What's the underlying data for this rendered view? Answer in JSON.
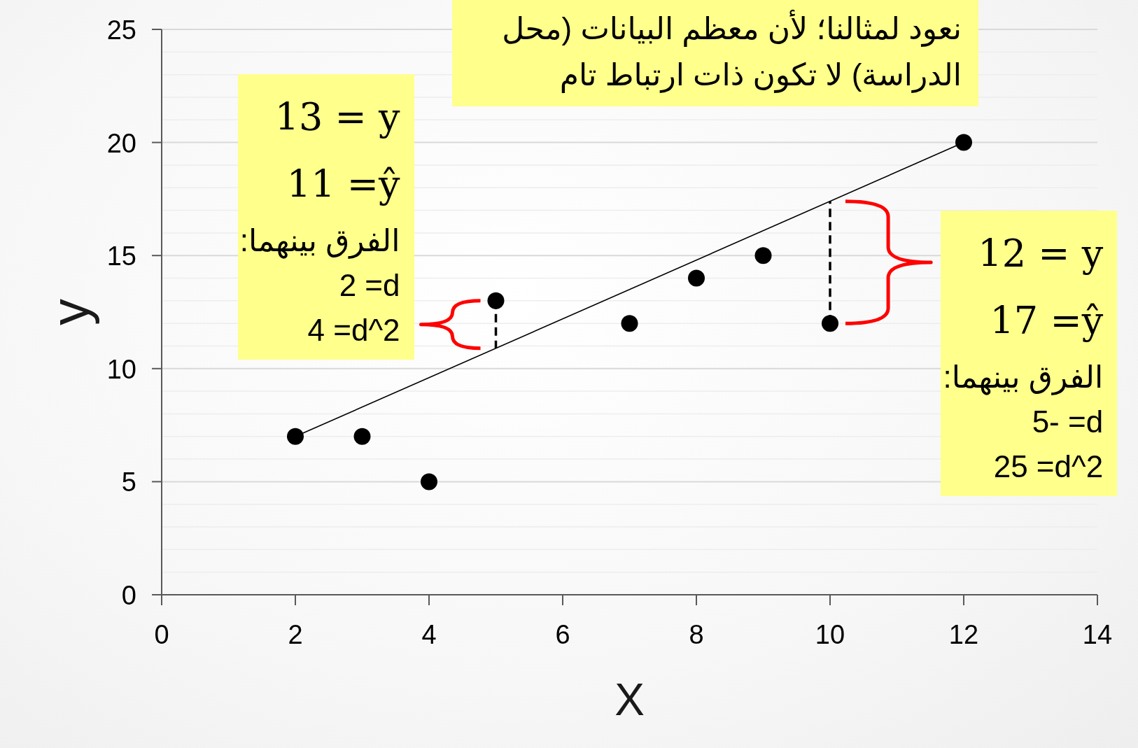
{
  "chart_data": {
    "type": "scatter",
    "xlabel": "X",
    "ylabel": "y",
    "xlim": [
      0,
      14
    ],
    "ylim": [
      0,
      25
    ],
    "xticks": [
      0,
      2,
      4,
      6,
      8,
      10,
      12,
      14
    ],
    "yticks": [
      0,
      {
        "value": 1,
        "label": null
      },
      {
        "value": 2,
        "label": null
      },
      {
        "value": 3,
        "label": null
      },
      {
        "value": 4,
        "label": null
      },
      5,
      {
        "value": 6,
        "label": null
      },
      {
        "value": 7,
        "label": null
      },
      {
        "value": 8,
        "label": null
      },
      {
        "value": 9,
        "label": null
      },
      10,
      {
        "value": 11,
        "label": null
      },
      {
        "value": 12,
        "label": null
      },
      {
        "value": 13,
        "label": null
      },
      {
        "value": 14,
        "label": null
      },
      15,
      {
        "value": 16,
        "label": null
      },
      {
        "value": 17,
        "label": null
      },
      {
        "value": 18,
        "label": null
      },
      {
        "value": 19,
        "label": null
      },
      20,
      {
        "value": 21,
        "label": null
      },
      {
        "value": 22,
        "label": null
      },
      {
        "value": 23,
        "label": null
      },
      {
        "value": 24,
        "label": null
      },
      25
    ],
    "grid": "y",
    "marker": "circle",
    "series": [
      {
        "type": "line",
        "color": "#000000",
        "x": [
          2,
          12
        ],
        "values": [
          7,
          20
        ],
        "marker": "none",
        "line_style": "solid"
      },
      {
        "type": "line",
        "color": "#000000",
        "x": [
          5,
          5
        ],
        "values": [
          13,
          10.9
        ],
        "marker": "none",
        "line_style": "dashed"
      },
      {
        "type": "line",
        "color": "#000000",
        "x": [
          10,
          10
        ],
        "values": [
          12,
          17.4
        ],
        "marker": "none",
        "line_style": "dashed"
      },
      {
        "color": "#000000",
        "x": [
          2,
          3,
          4,
          5,
          7,
          8,
          9,
          10,
          12
        ],
        "values": [
          7,
          7,
          5,
          13,
          12,
          14,
          15,
          12,
          20
        ]
      }
    ],
    "annotations": [
      "نعود لمثالنا؛ لأن معظم البيانات (محل الدراسة) لا تكون ذات ارتباط تام",
      {
        "text": "13 = y\n11 =ŷ\nالفرق بينهما:\n2 =d\n4 =d^2",
        "x": 5,
        "y": 13
      },
      {
        "text": "12 = y\n17 =ŷ\nالفرق بينهما:\n5- =d\n25 =d^2",
        "x": 10,
        "y": 12
      }
    ]
  }
}
